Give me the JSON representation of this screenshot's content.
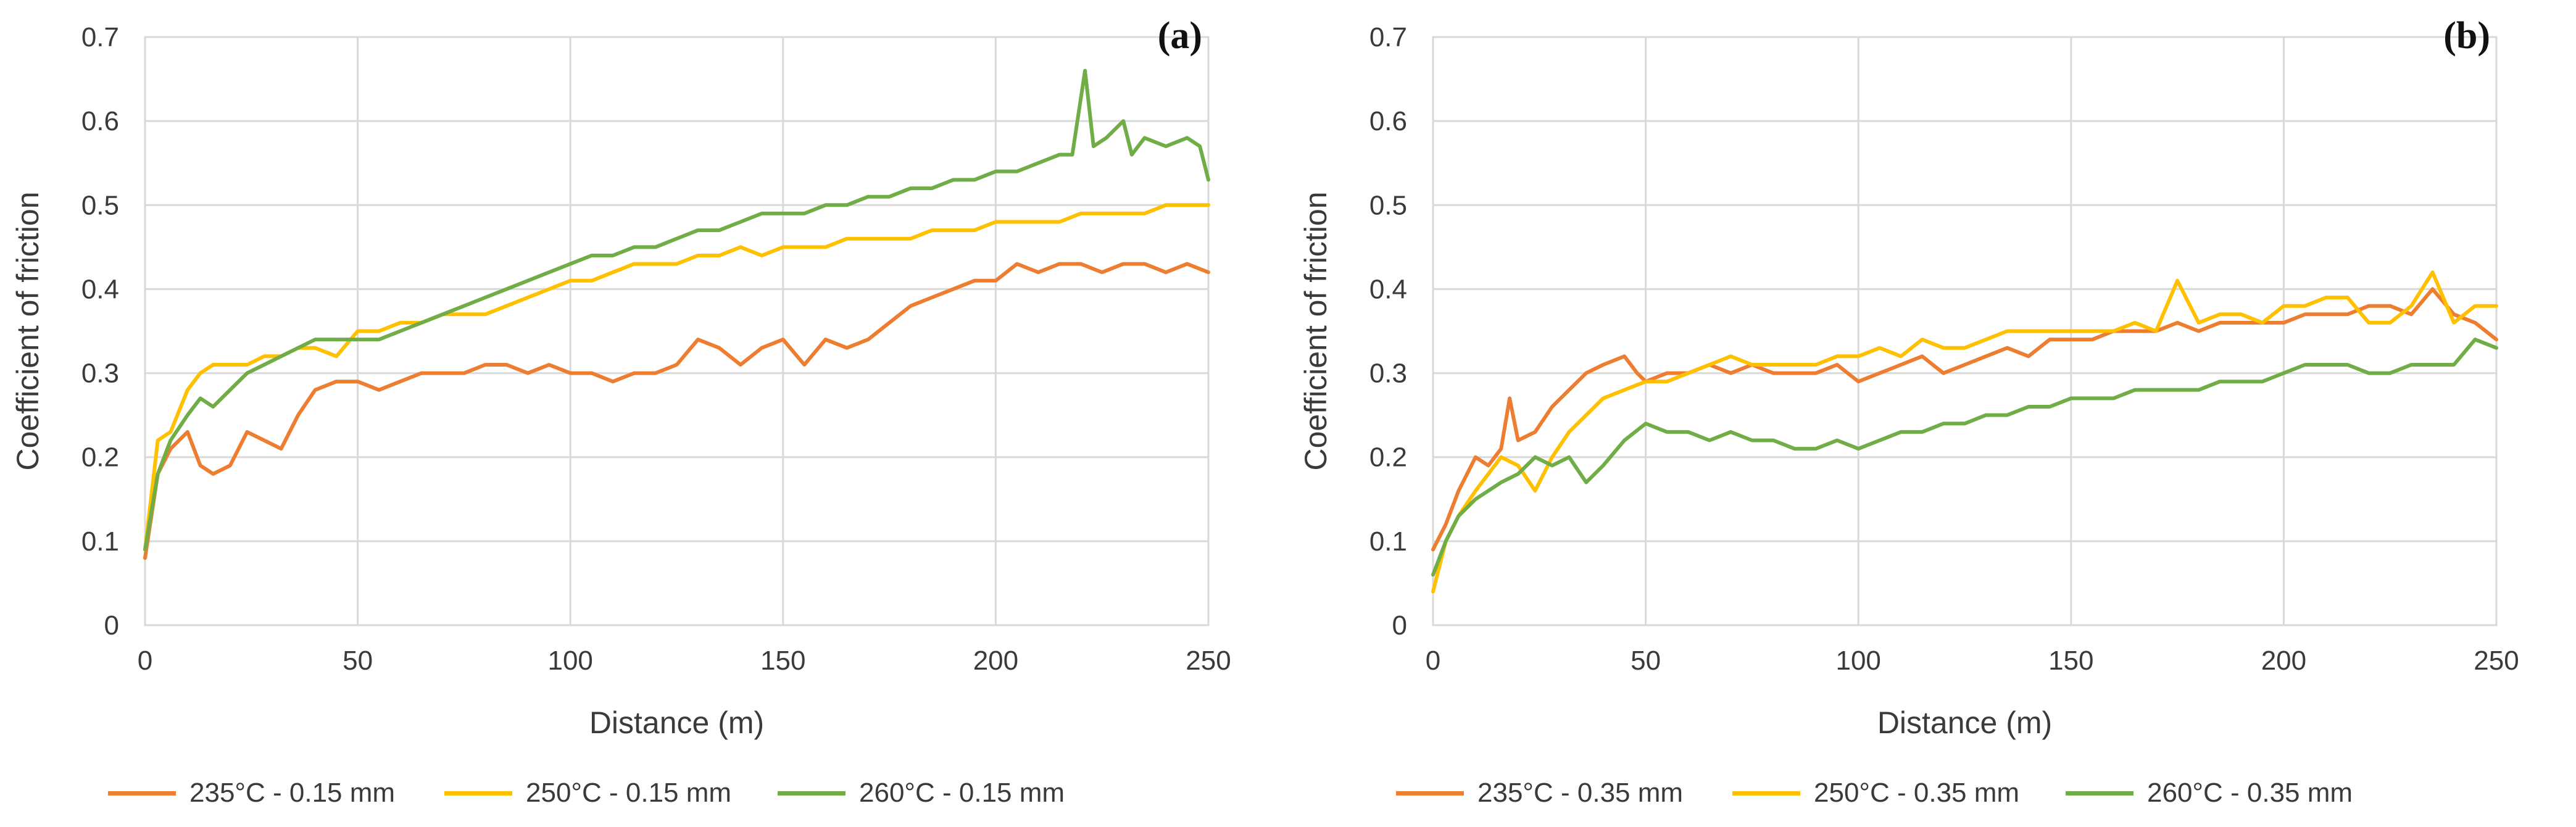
{
  "chart_data": [
    {
      "type": "line",
      "panel_label": "(a)",
      "xlabel": "Distance (m)",
      "ylabel": "Coefficient of friction",
      "xlim": [
        0,
        250
      ],
      "ylim": [
        0,
        0.7
      ],
      "x_ticks": [
        "0",
        "50",
        "100",
        "150",
        "200",
        "250"
      ],
      "y_ticks": [
        "0",
        "0.1",
        "0.2",
        "0.3",
        "0.4",
        "0.5",
        "0.6",
        "0.7"
      ],
      "grid": true,
      "legend_position": "bottom",
      "series": [
        {
          "name": "235°C - 0.15 mm",
          "color": "#ED7D31",
          "x": [
            0,
            3,
            6,
            10,
            13,
            16,
            20,
            24,
            28,
            32,
            36,
            40,
            45,
            50,
            55,
            60,
            65,
            70,
            75,
            80,
            85,
            90,
            95,
            100,
            105,
            110,
            115,
            120,
            125,
            130,
            135,
            140,
            145,
            150,
            155,
            160,
            165,
            170,
            175,
            180,
            185,
            190,
            195,
            200,
            205,
            210,
            215,
            220,
            225,
            230,
            235,
            240,
            245,
            250
          ],
          "y": [
            0.08,
            0.18,
            0.21,
            0.23,
            0.19,
            0.18,
            0.19,
            0.23,
            0.22,
            0.21,
            0.25,
            0.28,
            0.29,
            0.29,
            0.28,
            0.29,
            0.3,
            0.3,
            0.3,
            0.31,
            0.31,
            0.3,
            0.31,
            0.3,
            0.3,
            0.29,
            0.3,
            0.3,
            0.31,
            0.34,
            0.33,
            0.31,
            0.33,
            0.34,
            0.31,
            0.34,
            0.33,
            0.34,
            0.36,
            0.38,
            0.39,
            0.4,
            0.41,
            0.41,
            0.43,
            0.42,
            0.43,
            0.43,
            0.42,
            0.43,
            0.43,
            0.42,
            0.43,
            0.42
          ]
        },
        {
          "name": "250°C - 0.15 mm",
          "color": "#FFC000",
          "x": [
            0,
            3,
            6,
            10,
            13,
            16,
            20,
            24,
            28,
            32,
            36,
            40,
            45,
            50,
            55,
            60,
            65,
            70,
            75,
            80,
            85,
            90,
            95,
            100,
            105,
            110,
            115,
            120,
            125,
            130,
            135,
            140,
            145,
            150,
            155,
            160,
            165,
            170,
            175,
            180,
            185,
            190,
            195,
            200,
            205,
            210,
            215,
            220,
            225,
            230,
            235,
            240,
            245,
            250
          ],
          "y": [
            0.09,
            0.22,
            0.23,
            0.28,
            0.3,
            0.31,
            0.31,
            0.31,
            0.32,
            0.32,
            0.33,
            0.33,
            0.32,
            0.35,
            0.35,
            0.36,
            0.36,
            0.37,
            0.37,
            0.37,
            0.38,
            0.39,
            0.4,
            0.41,
            0.41,
            0.42,
            0.43,
            0.43,
            0.43,
            0.44,
            0.44,
            0.45,
            0.44,
            0.45,
            0.45,
            0.45,
            0.46,
            0.46,
            0.46,
            0.46,
            0.47,
            0.47,
            0.47,
            0.48,
            0.48,
            0.48,
            0.48,
            0.49,
            0.49,
            0.49,
            0.49,
            0.5,
            0.5,
            0.5
          ]
        },
        {
          "name": "260°C - 0.15 mm",
          "color": "#70AD47",
          "x": [
            0,
            3,
            6,
            10,
            13,
            16,
            20,
            24,
            28,
            32,
            36,
            40,
            45,
            50,
            55,
            60,
            65,
            70,
            75,
            80,
            85,
            90,
            95,
            100,
            105,
            110,
            115,
            120,
            125,
            130,
            135,
            140,
            145,
            150,
            155,
            160,
            165,
            170,
            175,
            180,
            185,
            190,
            195,
            200,
            205,
            210,
            215,
            218,
            221,
            223,
            226,
            230,
            232,
            235,
            240,
            245,
            248,
            250
          ],
          "y": [
            0.09,
            0.18,
            0.22,
            0.25,
            0.27,
            0.26,
            0.28,
            0.3,
            0.31,
            0.32,
            0.33,
            0.34,
            0.34,
            0.34,
            0.34,
            0.35,
            0.36,
            0.37,
            0.38,
            0.39,
            0.4,
            0.41,
            0.42,
            0.43,
            0.44,
            0.44,
            0.45,
            0.45,
            0.46,
            0.47,
            0.47,
            0.48,
            0.49,
            0.49,
            0.49,
            0.5,
            0.5,
            0.51,
            0.51,
            0.52,
            0.52,
            0.53,
            0.53,
            0.54,
            0.54,
            0.55,
            0.56,
            0.56,
            0.66,
            0.57,
            0.58,
            0.6,
            0.56,
            0.58,
            0.57,
            0.58,
            0.57,
            0.53
          ]
        }
      ]
    },
    {
      "type": "line",
      "panel_label": "(b)",
      "xlabel": "Distance (m)",
      "ylabel": "Coefficient of friction",
      "xlim": [
        0,
        250
      ],
      "ylim": [
        0,
        0.7
      ],
      "x_ticks": [
        "0",
        "50",
        "100",
        "150",
        "200",
        "250"
      ],
      "y_ticks": [
        "0",
        "0.1",
        "0.2",
        "0.3",
        "0.4",
        "0.5",
        "0.6",
        "0.7"
      ],
      "grid": true,
      "legend_position": "bottom",
      "series": [
        {
          "name": "235°C - 0.35 mm",
          "color": "#ED7D31",
          "x": [
            0,
            3,
            6,
            10,
            13,
            16,
            18,
            20,
            24,
            28,
            32,
            36,
            40,
            45,
            48,
            50,
            55,
            60,
            65,
            70,
            75,
            80,
            85,
            90,
            95,
            100,
            105,
            110,
            115,
            120,
            125,
            130,
            135,
            140,
            145,
            150,
            155,
            160,
            165,
            170,
            175,
            180,
            185,
            190,
            195,
            200,
            205,
            210,
            215,
            220,
            225,
            230,
            235,
            240,
            245,
            250
          ],
          "y": [
            0.09,
            0.12,
            0.16,
            0.2,
            0.19,
            0.21,
            0.27,
            0.22,
            0.23,
            0.26,
            0.28,
            0.3,
            0.31,
            0.32,
            0.3,
            0.29,
            0.3,
            0.3,
            0.31,
            0.3,
            0.31,
            0.3,
            0.3,
            0.3,
            0.31,
            0.29,
            0.3,
            0.31,
            0.32,
            0.3,
            0.31,
            0.32,
            0.33,
            0.32,
            0.34,
            0.34,
            0.34,
            0.35,
            0.35,
            0.35,
            0.36,
            0.35,
            0.36,
            0.36,
            0.36,
            0.36,
            0.37,
            0.37,
            0.37,
            0.38,
            0.38,
            0.37,
            0.4,
            0.37,
            0.36,
            0.34
          ]
        },
        {
          "name": "250°C - 0.35 mm",
          "color": "#FFC000",
          "x": [
            0,
            3,
            6,
            10,
            13,
            16,
            20,
            24,
            28,
            32,
            36,
            40,
            45,
            50,
            55,
            60,
            65,
            70,
            75,
            80,
            85,
            90,
            95,
            100,
            105,
            110,
            115,
            120,
            125,
            130,
            135,
            140,
            145,
            150,
            155,
            160,
            165,
            170,
            175,
            180,
            185,
            190,
            195,
            200,
            205,
            210,
            215,
            220,
            225,
            230,
            235,
            240,
            245,
            250
          ],
          "y": [
            0.04,
            0.1,
            0.13,
            0.16,
            0.18,
            0.2,
            0.19,
            0.16,
            0.2,
            0.23,
            0.25,
            0.27,
            0.28,
            0.29,
            0.29,
            0.3,
            0.31,
            0.32,
            0.31,
            0.31,
            0.31,
            0.31,
            0.32,
            0.32,
            0.33,
            0.32,
            0.34,
            0.33,
            0.33,
            0.34,
            0.35,
            0.35,
            0.35,
            0.35,
            0.35,
            0.35,
            0.36,
            0.35,
            0.41,
            0.36,
            0.37,
            0.37,
            0.36,
            0.38,
            0.38,
            0.39,
            0.39,
            0.36,
            0.36,
            0.38,
            0.42,
            0.36,
            0.38,
            0.38
          ]
        },
        {
          "name": "260°C - 0.35 mm",
          "color": "#70AD47",
          "x": [
            0,
            3,
            6,
            10,
            13,
            16,
            20,
            24,
            28,
            32,
            36,
            40,
            45,
            50,
            55,
            60,
            65,
            70,
            75,
            80,
            85,
            90,
            95,
            100,
            105,
            110,
            115,
            120,
            125,
            130,
            135,
            140,
            145,
            150,
            155,
            160,
            165,
            170,
            175,
            180,
            185,
            190,
            195,
            200,
            205,
            210,
            215,
            220,
            225,
            230,
            235,
            240,
            245,
            250
          ],
          "y": [
            0.06,
            0.1,
            0.13,
            0.15,
            0.16,
            0.17,
            0.18,
            0.2,
            0.19,
            0.2,
            0.17,
            0.19,
            0.22,
            0.24,
            0.23,
            0.23,
            0.22,
            0.23,
            0.22,
            0.22,
            0.21,
            0.21,
            0.22,
            0.21,
            0.22,
            0.23,
            0.23,
            0.24,
            0.24,
            0.25,
            0.25,
            0.26,
            0.26,
            0.27,
            0.27,
            0.27,
            0.28,
            0.28,
            0.28,
            0.28,
            0.29,
            0.29,
            0.29,
            0.3,
            0.31,
            0.31,
            0.31,
            0.3,
            0.3,
            0.31,
            0.31,
            0.31,
            0.34,
            0.33
          ]
        }
      ]
    }
  ]
}
